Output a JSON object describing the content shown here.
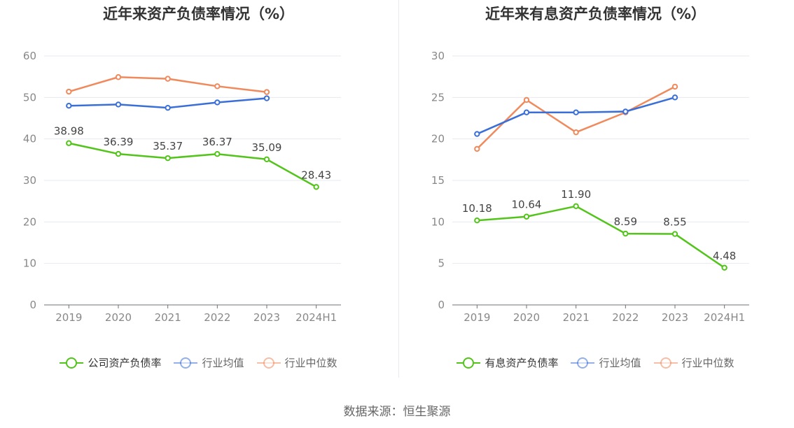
{
  "source": "数据来源：恒生聚源",
  "chart_data": [
    {
      "type": "line",
      "title": "近年来资产负债率情况（%）",
      "categories": [
        "2019",
        "2020",
        "2021",
        "2022",
        "2023",
        "2024H1"
      ],
      "ylim": [
        0,
        60
      ],
      "yticks": [
        0,
        10,
        20,
        30,
        40,
        50,
        60
      ],
      "grid": true,
      "legend_position": "bottom",
      "series": [
        {
          "name": "公司资产负债率",
          "color": "#52c41a",
          "values": [
            38.98,
            36.39,
            35.37,
            36.37,
            35.09,
            28.43
          ],
          "labels": [
            "38.98",
            "36.39",
            "35.37",
            "36.37",
            "35.09",
            "28.43"
          ],
          "show_labels": true
        },
        {
          "name": "行业均值",
          "color": "#3b6fd8",
          "values": [
            48.0,
            48.3,
            47.5,
            48.8,
            49.8,
            null
          ],
          "show_labels": false
        },
        {
          "name": "行业中位数",
          "color": "#f08a5d",
          "values": [
            51.4,
            54.9,
            54.5,
            52.7,
            51.3,
            null
          ],
          "show_labels": false
        }
      ]
    },
    {
      "type": "line",
      "title": "近年来有息资产负债率情况（%）",
      "categories": [
        "2019",
        "2020",
        "2021",
        "2022",
        "2023",
        "2024H1"
      ],
      "ylim": [
        0,
        30
      ],
      "yticks": [
        0,
        5,
        10,
        15,
        20,
        25,
        30
      ],
      "grid": true,
      "legend_position": "bottom",
      "series": [
        {
          "name": "有息资产负债率",
          "color": "#52c41a",
          "values": [
            10.18,
            10.64,
            11.9,
            8.59,
            8.55,
            4.48
          ],
          "labels": [
            "10.18",
            "10.64",
            "11.90",
            "8.59",
            "8.55",
            "4.48"
          ],
          "show_labels": true
        },
        {
          "name": "行业均值",
          "color": "#3b6fd8",
          "values": [
            20.6,
            23.2,
            23.2,
            23.3,
            25.0,
            null
          ],
          "show_labels": false
        },
        {
          "name": "行业中位数",
          "color": "#f08a5d",
          "values": [
            18.8,
            24.7,
            20.8,
            23.2,
            26.3,
            null
          ],
          "show_labels": false
        }
      ]
    }
  ]
}
